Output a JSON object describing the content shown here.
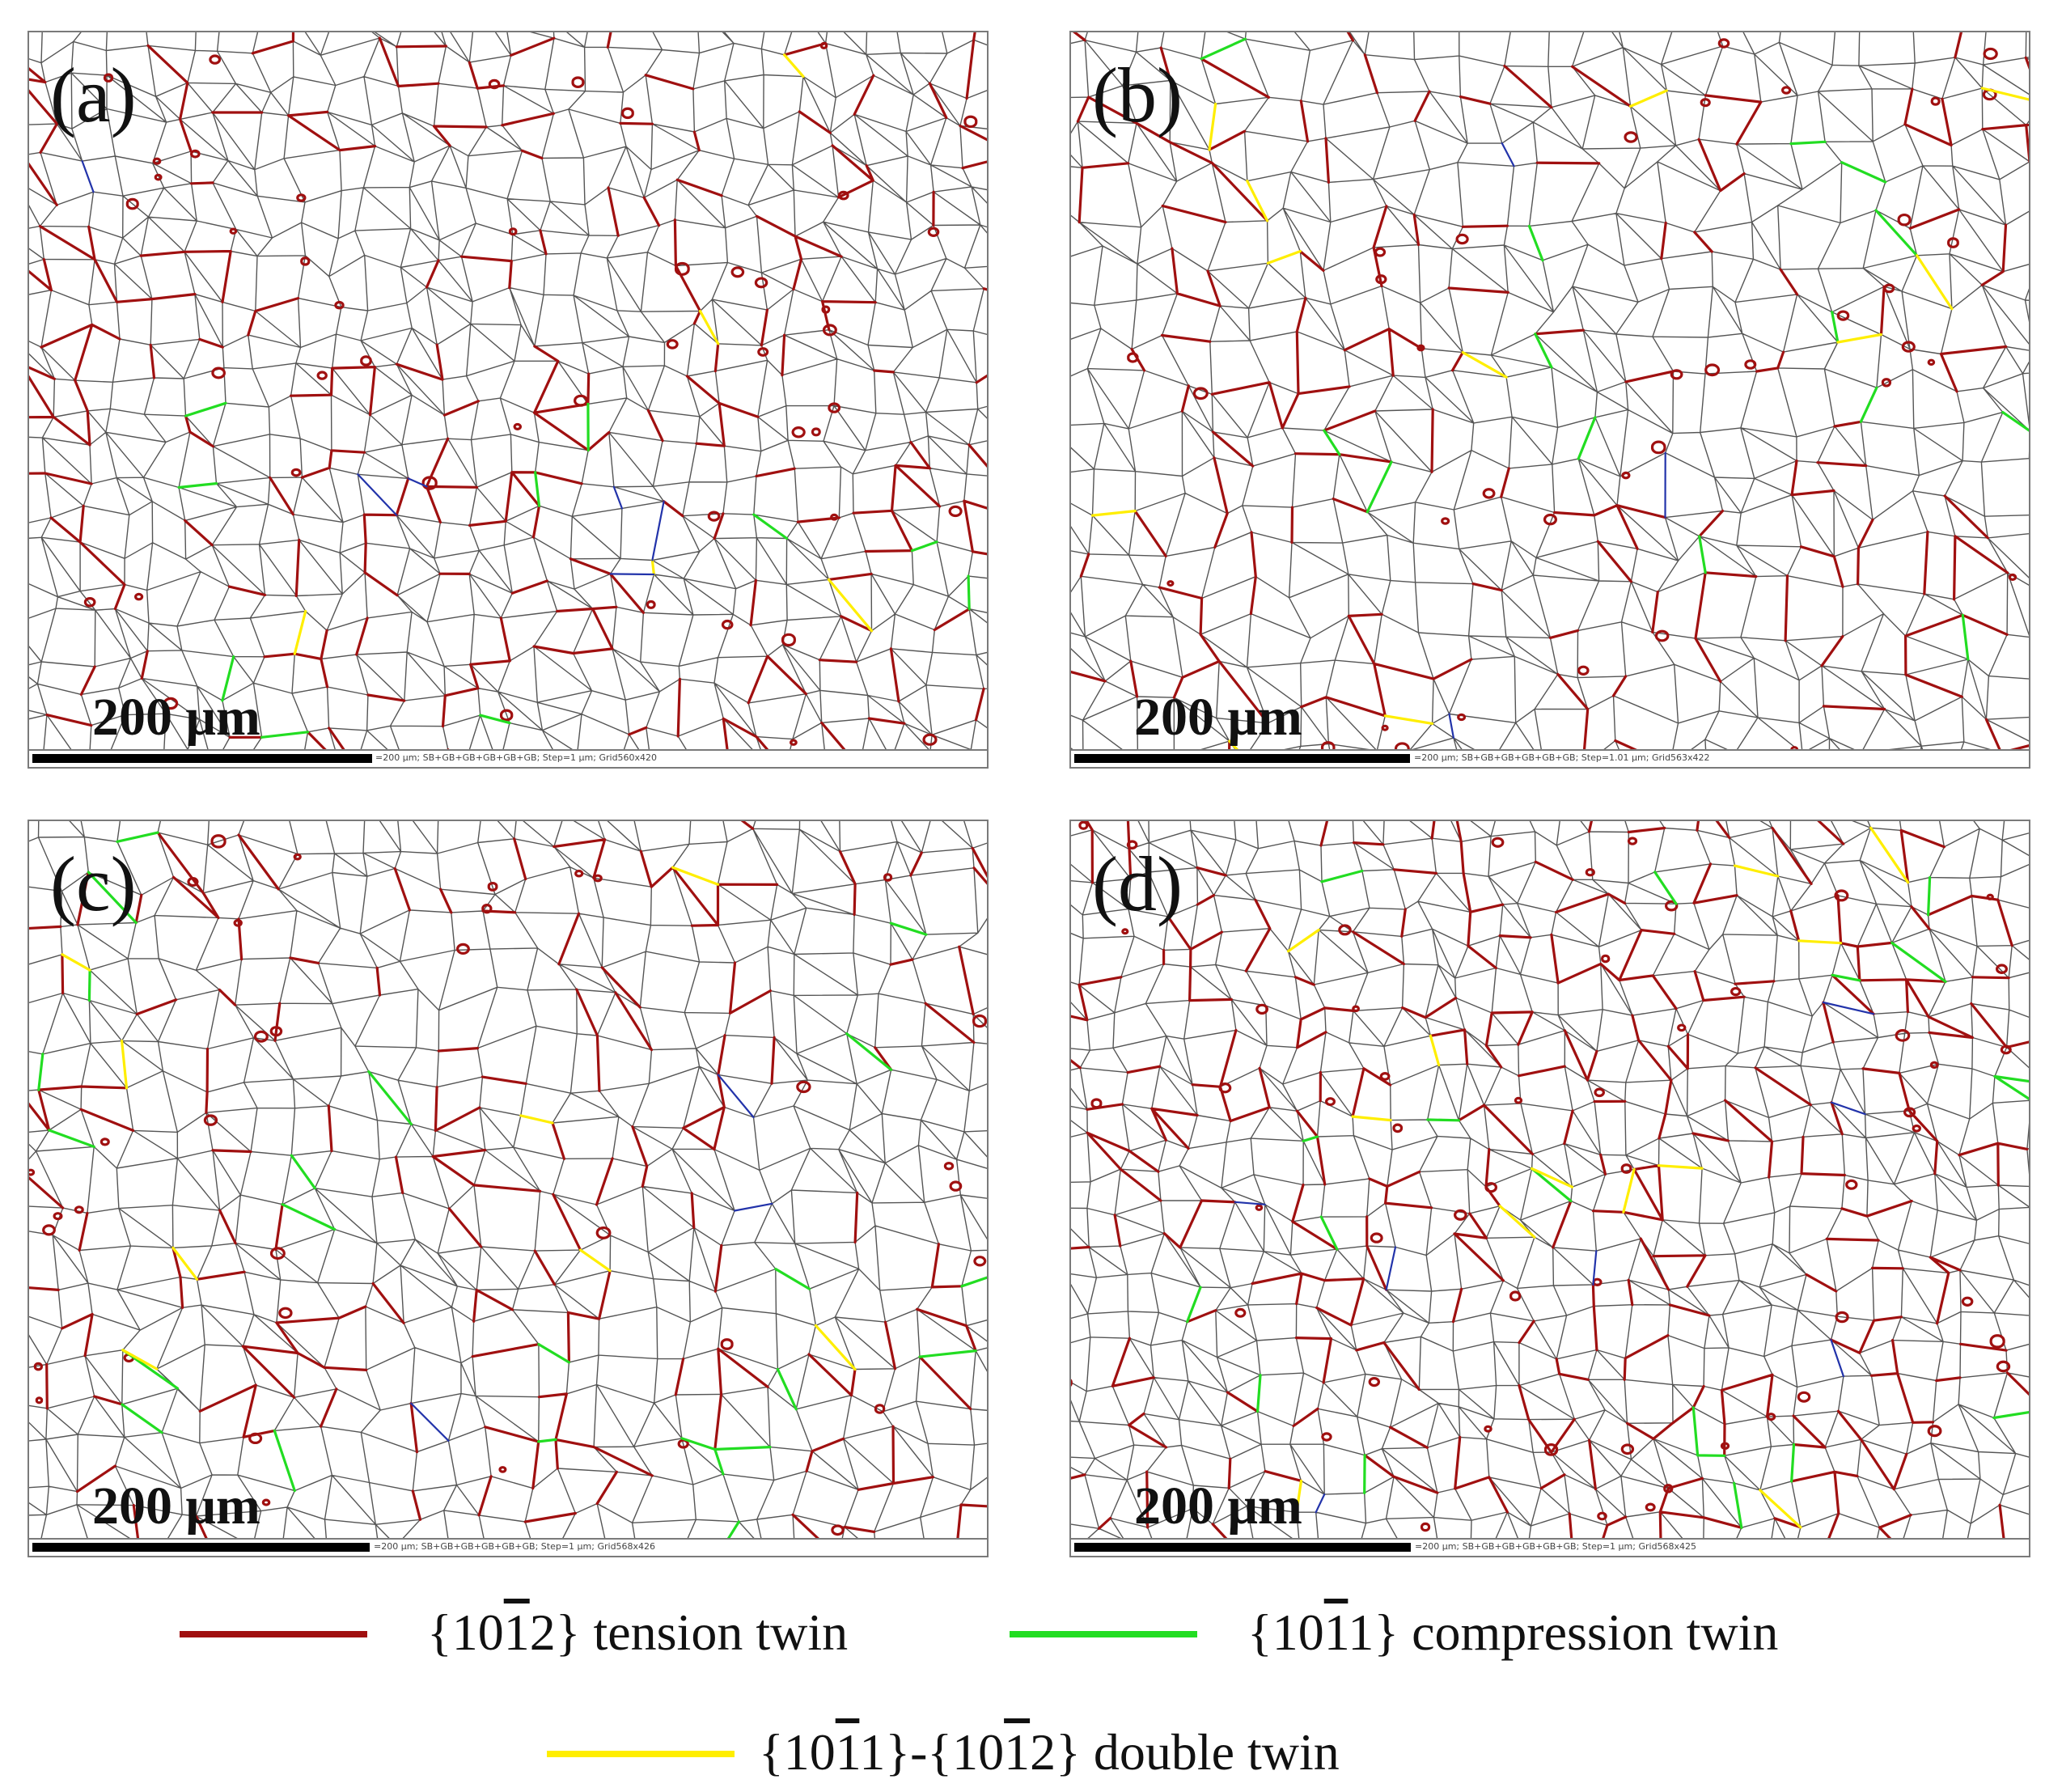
{
  "panels": [
    {
      "label": "(a)",
      "scale_label": "200 μm",
      "scalebar_caption": "=200 μm; SB+GB+GB+GB+GB+GB; Step=1 μm; Grid560x420"
    },
    {
      "label": "(b)",
      "scale_label": "200 μm",
      "scalebar_caption": "=200 μm; SB+GB+GB+GB+GB+GB; Step=1.01 μm; Grid563x422"
    },
    {
      "label": "(c)",
      "scale_label": "200 μm",
      "scalebar_caption": "=200 μm; SB+GB+GB+GB+GB+GB; Step=1 μm; Grid568x426"
    },
    {
      "label": "(d)",
      "scale_label": "200 μm",
      "scalebar_caption": "=200 μm; SB+GB+GB+GB+GB+GB; Step=1 μm; Grid568x425"
    }
  ],
  "legend": {
    "tension": {
      "open": "{10",
      "bar": "1",
      "close": "2} tension twin",
      "color": "#a01010"
    },
    "compression": {
      "open": "{10",
      "bar": "1",
      "close": "1} compression twin",
      "color": "#22dd22"
    },
    "double": {
      "open1": "{10",
      "bar1": "1",
      "mid": "1}-{10",
      "bar2": "1",
      "close": "2} double twin",
      "color": "#ffee00"
    }
  },
  "colors": {
    "grain_boundary": "#555555",
    "tension": "#a01010",
    "compression": "#22dd22",
    "double": "#ffee00",
    "other": "#2233aa"
  }
}
